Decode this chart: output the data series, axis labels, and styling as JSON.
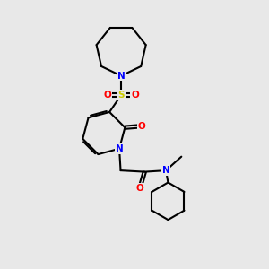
{
  "bg_color": "#e8e8e8",
  "bond_color": "#000000",
  "N_color": "#0000ff",
  "O_color": "#ff0000",
  "S_color": "#cccc00",
  "line_width": 1.5,
  "figsize": [
    3.0,
    3.0
  ],
  "dpi": 100,
  "xlim": [
    0,
    10
  ],
  "ylim": [
    0,
    10
  ]
}
